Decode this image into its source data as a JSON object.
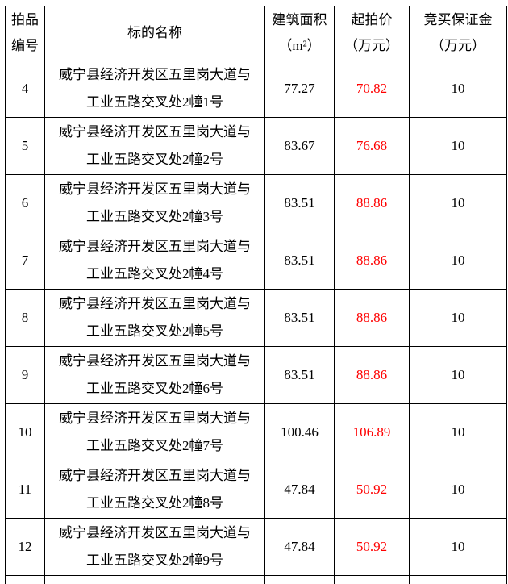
{
  "colors": {
    "border": "#000000",
    "text": "#000000",
    "start_price_text": "#ff0000",
    "background": "#ffffff"
  },
  "table": {
    "header": {
      "col1_line1": "拍品",
      "col1_line2": "编号",
      "col2": "标的名称",
      "col3_line1": "建筑面积",
      "col3_line2": "（m²）",
      "col4_line1": "起拍价",
      "col4_line2": "（万元）",
      "col5_line1": "竞买保证金",
      "col5_line2": "（万元）"
    },
    "rows": [
      {
        "item_no": "4",
        "name_line1": "威宁县经济开发区五里岗大道与",
        "name_line2": "工业五路交叉处2幢1号",
        "area": "77.27",
        "start_price": "70.82",
        "deposit": "10"
      },
      {
        "item_no": "5",
        "name_line1": "威宁县经济开发区五里岗大道与",
        "name_line2": "工业五路交叉处2幢2号",
        "area": "83.67",
        "start_price": "76.68",
        "deposit": "10"
      },
      {
        "item_no": "6",
        "name_line1": "威宁县经济开发区五里岗大道与",
        "name_line2": "工业五路交叉处2幢3号",
        "area": "83.51",
        "start_price": "88.86",
        "deposit": "10"
      },
      {
        "item_no": "7",
        "name_line1": "威宁县经济开发区五里岗大道与",
        "name_line2": "工业五路交叉处2幢4号",
        "area": "83.51",
        "start_price": "88.86",
        "deposit": "10"
      },
      {
        "item_no": "8",
        "name_line1": "威宁县经济开发区五里岗大道与",
        "name_line2": "工业五路交叉处2幢5号",
        "area": "83.51",
        "start_price": "88.86",
        "deposit": "10"
      },
      {
        "item_no": "9",
        "name_line1": "威宁县经济开发区五里岗大道与",
        "name_line2": "工业五路交叉处2幢6号",
        "area": "83.51",
        "start_price": "88.86",
        "deposit": "10"
      },
      {
        "item_no": "10",
        "name_line1": "威宁县经济开发区五里岗大道与",
        "name_line2": "工业五路交叉处2幢7号",
        "area": "100.46",
        "start_price": "106.89",
        "deposit": "10"
      },
      {
        "item_no": "11",
        "name_line1": "威宁县经济开发区五里岗大道与",
        "name_line2": "工业五路交叉处2幢8号",
        "area": "47.84",
        "start_price": "50.92",
        "deposit": "10"
      },
      {
        "item_no": "12",
        "name_line1": "威宁县经济开发区五里岗大道与",
        "name_line2": "工业五路交叉处2幢9号",
        "area": "47.84",
        "start_price": "50.92",
        "deposit": "10"
      }
    ]
  }
}
